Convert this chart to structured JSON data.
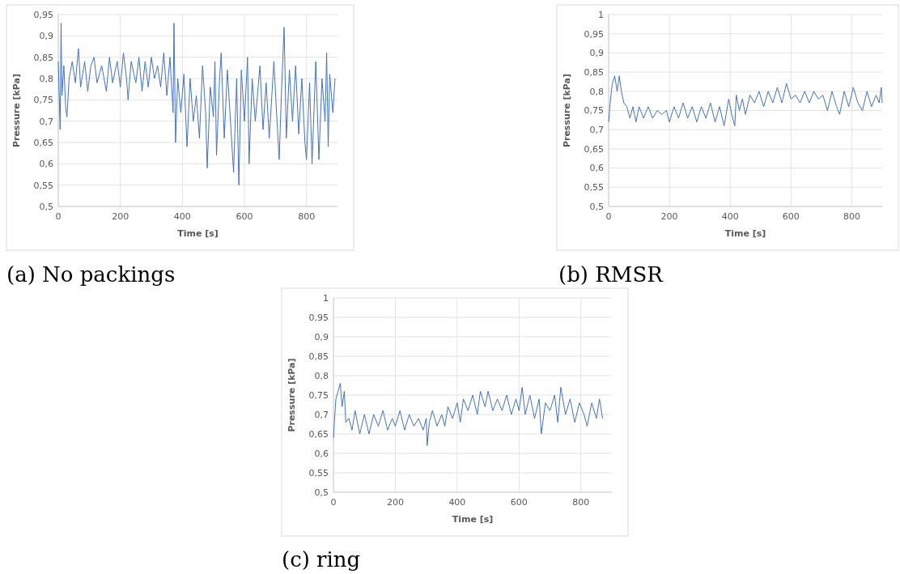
{
  "chart_data": [
    {
      "type": "line",
      "title": "(a) No packings",
      "xlabel": "Time [s]",
      "ylabel": "Pressure [kPa]",
      "grid": true,
      "xlim": [
        0,
        900
      ],
      "xticks": [
        0,
        200,
        400,
        600,
        800
      ],
      "ylim": [
        0.5,
        0.95
      ],
      "yticks": [
        {
          "value": 0.5,
          "label": "0,5"
        },
        {
          "value": 0.55,
          "label": "0,55"
        },
        {
          "value": 0.6,
          "label": "0,6"
        },
        {
          "value": 0.65,
          "label": "0,65"
        },
        {
          "value": 0.7,
          "label": "0,7"
        },
        {
          "value": 0.75,
          "label": "0,75"
        },
        {
          "value": 0.8,
          "label": "0,8"
        },
        {
          "value": 0.85,
          "label": "0,85"
        },
        {
          "value": 0.9,
          "label": "0,9"
        },
        {
          "value": 0.95,
          "label": "0,95"
        }
      ],
      "series": [
        {
          "color": "#4472c4",
          "x": [
            0,
            3,
            6,
            9,
            12,
            18,
            24,
            28,
            35,
            45,
            55,
            65,
            72,
            85,
            95,
            105,
            115,
            125,
            140,
            155,
            165,
            175,
            190,
            200,
            210,
            220,
            225,
            235,
            250,
            260,
            270,
            280,
            290,
            300,
            310,
            320,
            330,
            340,
            350,
            360,
            370,
            373,
            378,
            385,
            395,
            405,
            415,
            425,
            435,
            445,
            455,
            465,
            475,
            480,
            490,
            500,
            505,
            510,
            520,
            525,
            535,
            545,
            555,
            565,
            575,
            582,
            590,
            600,
            610,
            615,
            625,
            635,
            650,
            660,
            670,
            680,
            695,
            705,
            712,
            720,
            728,
            735,
            745,
            755,
            765,
            775,
            785,
            795,
            800,
            810,
            818,
            830,
            840,
            850,
            860,
            865,
            870,
            875,
            885,
            892
          ],
          "values": [
            0.84,
            0.76,
            0.68,
            0.93,
            0.76,
            0.83,
            0.73,
            0.71,
            0.8,
            0.84,
            0.79,
            0.87,
            0.78,
            0.84,
            0.77,
            0.83,
            0.85,
            0.79,
            0.83,
            0.77,
            0.85,
            0.79,
            0.84,
            0.78,
            0.86,
            0.8,
            0.75,
            0.84,
            0.79,
            0.85,
            0.77,
            0.84,
            0.78,
            0.85,
            0.8,
            0.83,
            0.78,
            0.86,
            0.76,
            0.85,
            0.72,
            0.93,
            0.65,
            0.8,
            0.72,
            0.81,
            0.64,
            0.8,
            0.7,
            0.76,
            0.66,
            0.83,
            0.72,
            0.59,
            0.78,
            0.71,
            0.84,
            0.62,
            0.8,
            0.86,
            0.66,
            0.82,
            0.7,
            0.58,
            0.8,
            0.55,
            0.82,
            0.7,
            0.85,
            0.6,
            0.8,
            0.7,
            0.83,
            0.68,
            0.79,
            0.66,
            0.84,
            0.7,
            0.61,
            0.78,
            0.92,
            0.66,
            0.82,
            0.7,
            0.83,
            0.67,
            0.8,
            0.65,
            0.61,
            0.79,
            0.6,
            0.84,
            0.61,
            0.8,
            0.7,
            0.86,
            0.64,
            0.81,
            0.72,
            0.8
          ]
        }
      ]
    },
    {
      "type": "line",
      "title": "(b) RMSR",
      "xlabel": "Time [s]",
      "ylabel": "Pressure [kPa]",
      "grid": true,
      "xlim": [
        0,
        900
      ],
      "xticks": [
        0,
        200,
        400,
        600,
        800
      ],
      "ylim": [
        0.5,
        1
      ],
      "yticks": [
        {
          "value": 0.5,
          "label": "0,5"
        },
        {
          "value": 0.55,
          "label": "0,55"
        },
        {
          "value": 0.6,
          "label": "0,6"
        },
        {
          "value": 0.65,
          "label": "0,65"
        },
        {
          "value": 0.7,
          "label": "0,7"
        },
        {
          "value": 0.75,
          "label": "0,75"
        },
        {
          "value": 0.8,
          "label": "0,8"
        },
        {
          "value": 0.85,
          "label": "0,85"
        },
        {
          "value": 0.9,
          "label": "0,9"
        },
        {
          "value": 0.95,
          "label": "0,95"
        },
        1
      ],
      "series": [
        {
          "color": "#4472c4",
          "x": [
            0,
            5,
            12,
            20,
            28,
            35,
            42,
            50,
            60,
            70,
            80,
            90,
            100,
            115,
            130,
            145,
            160,
            175,
            190,
            200,
            215,
            230,
            245,
            260,
            275,
            290,
            305,
            320,
            335,
            350,
            365,
            380,
            395,
            405,
            415,
            420,
            430,
            440,
            450,
            465,
            480,
            495,
            510,
            525,
            540,
            555,
            570,
            585,
            600,
            615,
            630,
            645,
            660,
            675,
            690,
            705,
            720,
            735,
            750,
            760,
            775,
            790,
            805,
            820,
            835,
            850,
            865,
            880,
            890,
            897,
            900
          ],
          "values": [
            0.72,
            0.77,
            0.82,
            0.84,
            0.8,
            0.84,
            0.8,
            0.77,
            0.76,
            0.73,
            0.76,
            0.72,
            0.76,
            0.73,
            0.76,
            0.73,
            0.75,
            0.74,
            0.75,
            0.72,
            0.76,
            0.73,
            0.77,
            0.73,
            0.76,
            0.72,
            0.76,
            0.73,
            0.77,
            0.72,
            0.76,
            0.71,
            0.78,
            0.74,
            0.71,
            0.79,
            0.75,
            0.78,
            0.74,
            0.79,
            0.77,
            0.8,
            0.76,
            0.8,
            0.77,
            0.81,
            0.77,
            0.82,
            0.78,
            0.79,
            0.77,
            0.8,
            0.77,
            0.8,
            0.78,
            0.79,
            0.75,
            0.8,
            0.76,
            0.74,
            0.8,
            0.76,
            0.81,
            0.77,
            0.75,
            0.8,
            0.76,
            0.79,
            0.77,
            0.81,
            0.77
          ]
        }
      ]
    },
    {
      "type": "line",
      "title": "(c) ring",
      "xlabel": "Time [s]",
      "ylabel": "Pressure [kPa]",
      "grid": true,
      "xlim": [
        0,
        900
      ],
      "xticks": [
        0,
        200,
        400,
        600,
        800
      ],
      "ylim": [
        0.5,
        1
      ],
      "yticks": [
        {
          "value": 0.5,
          "label": "0,5"
        },
        {
          "value": 0.55,
          "label": "0,55"
        },
        {
          "value": 0.6,
          "label": "0,6"
        },
        {
          "value": 0.65,
          "label": "0,65"
        },
        {
          "value": 0.7,
          "label": "0,7"
        },
        {
          "value": 0.75,
          "label": "0,75"
        },
        {
          "value": 0.8,
          "label": "0,8"
        },
        {
          "value": 0.85,
          "label": "0,85"
        },
        {
          "value": 0.9,
          "label": "0,9"
        },
        {
          "value": 0.95,
          "label": "0,95"
        },
        1
      ],
      "series": [
        {
          "color": "#4472c4",
          "x": [
            0,
            3,
            8,
            15,
            22,
            28,
            35,
            40,
            50,
            60,
            70,
            85,
            100,
            115,
            130,
            145,
            160,
            175,
            190,
            200,
            215,
            230,
            245,
            260,
            275,
            290,
            300,
            303,
            310,
            320,
            335,
            350,
            360,
            370,
            385,
            400,
            410,
            420,
            435,
            450,
            465,
            475,
            490,
            500,
            515,
            530,
            545,
            560,
            575,
            590,
            600,
            610,
            620,
            635,
            650,
            665,
            672,
            685,
            700,
            715,
            725,
            735,
            750,
            765,
            780,
            795,
            810,
            820,
            835,
            850,
            860,
            870
          ],
          "values": [
            0.64,
            0.68,
            0.74,
            0.76,
            0.78,
            0.72,
            0.76,
            0.68,
            0.69,
            0.66,
            0.71,
            0.65,
            0.7,
            0.65,
            0.7,
            0.67,
            0.71,
            0.66,
            0.69,
            0.67,
            0.71,
            0.66,
            0.7,
            0.67,
            0.69,
            0.66,
            0.69,
            0.62,
            0.68,
            0.71,
            0.67,
            0.7,
            0.67,
            0.72,
            0.69,
            0.73,
            0.68,
            0.74,
            0.71,
            0.75,
            0.7,
            0.76,
            0.72,
            0.76,
            0.71,
            0.74,
            0.71,
            0.75,
            0.7,
            0.74,
            0.71,
            0.77,
            0.7,
            0.75,
            0.69,
            0.74,
            0.65,
            0.73,
            0.71,
            0.75,
            0.68,
            0.77,
            0.7,
            0.74,
            0.68,
            0.73,
            0.7,
            0.67,
            0.73,
            0.69,
            0.74,
            0.69
          ]
        }
      ]
    }
  ]
}
